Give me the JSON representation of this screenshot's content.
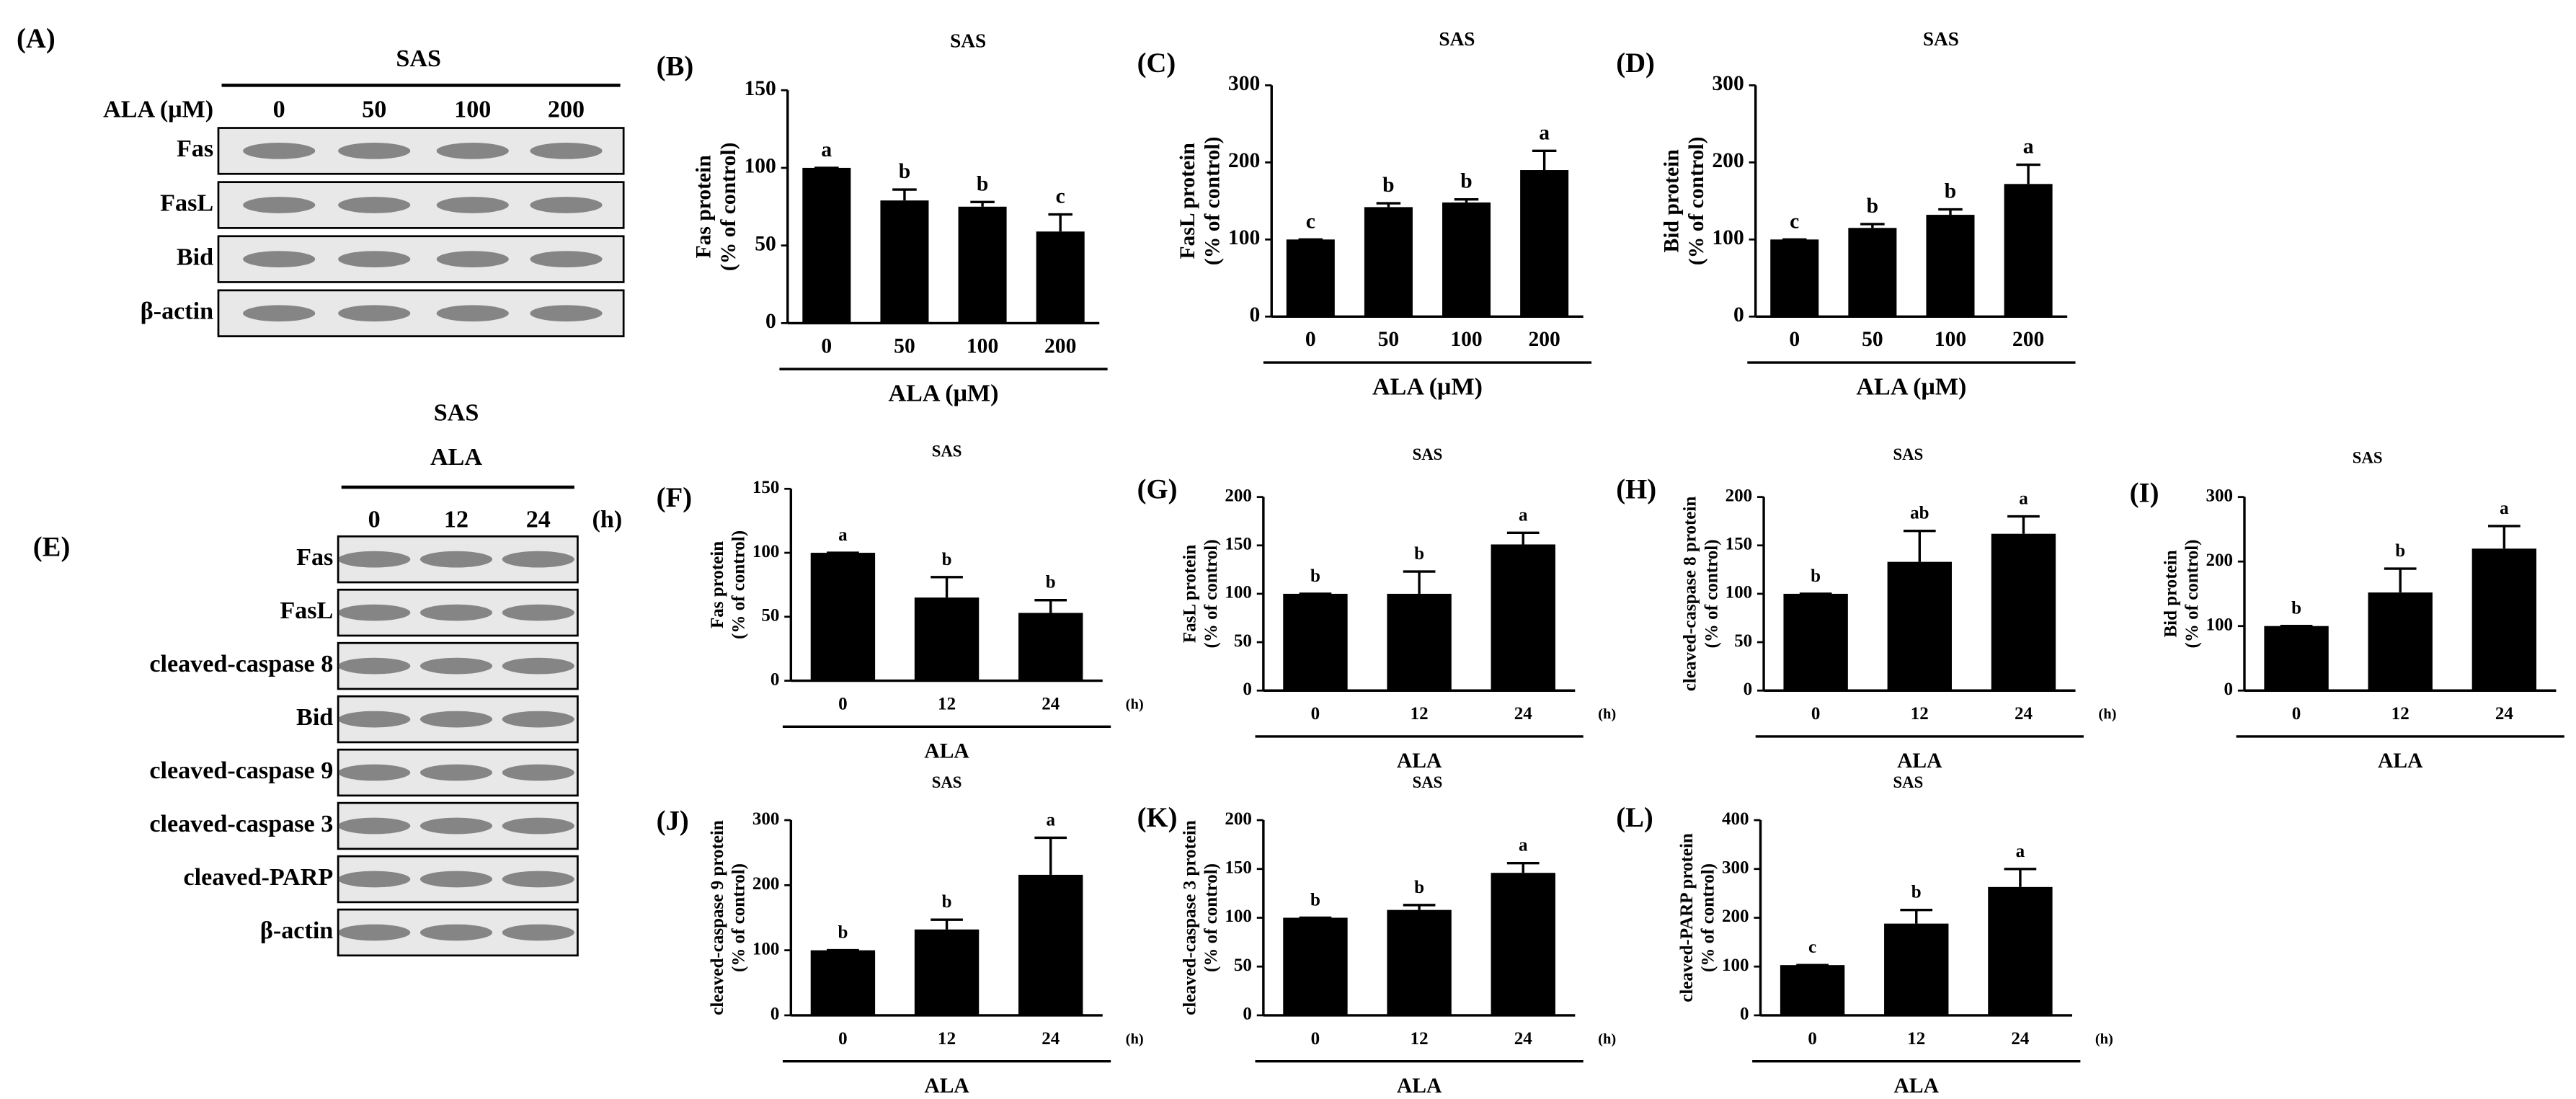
{
  "blots": [
    {
      "label": "(A)",
      "header": "SAS",
      "condition": "ALA (μM)",
      "lanes": [
        "0",
        "50",
        "100",
        "200"
      ],
      "rows": [
        "Fas",
        "FasL",
        "Bid",
        "β-actin"
      ]
    },
    {
      "label": "(E)",
      "header": "SAS",
      "condition": "ALA",
      "lanes": [
        "0",
        "12",
        "24"
      ],
      "unit": "(h)",
      "rows": [
        "Fas",
        "FasL",
        "cleaved-caspase 8",
        "Bid",
        "cleaved-caspase 9",
        "cleaved-caspase 3",
        "cleaved-PARP",
        "β-actin"
      ]
    }
  ],
  "chart_data": [
    {
      "type": "bar",
      "panel": "(B)",
      "title": "SAS",
      "ylabel": [
        "Fas protein",
        "(% of control)"
      ],
      "xlabel": "ALA (μM)",
      "categories": [
        "0",
        "50",
        "100",
        "200"
      ],
      "values": [
        100,
        79,
        75,
        59
      ],
      "errors": [
        0,
        7,
        3,
        11
      ],
      "letters": [
        "a",
        "b",
        "b",
        "c"
      ],
      "color": "#000000",
      "ylim": [
        0,
        150
      ],
      "yticks": [
        0,
        50,
        100,
        150
      ]
    },
    {
      "type": "bar",
      "panel": "(C)",
      "title": "SAS",
      "ylabel": [
        "FasL protein",
        "(% of control)"
      ],
      "xlabel": "ALA (μM)",
      "categories": [
        "0",
        "50",
        "100",
        "200"
      ],
      "values": [
        100,
        142,
        148,
        190
      ],
      "errors": [
        0,
        5,
        4,
        25
      ],
      "letters": [
        "c",
        "b",
        "b",
        "a"
      ],
      "color": "#000000",
      "ylim": [
        0,
        300
      ],
      "yticks": [
        0,
        100,
        200,
        300
      ]
    },
    {
      "type": "bar",
      "panel": "(D)",
      "title": "SAS",
      "ylabel": [
        "Bid protein",
        "(% of control)"
      ],
      "xlabel": "ALA (μM)",
      "categories": [
        "0",
        "50",
        "100",
        "200"
      ],
      "values": [
        100,
        115,
        132,
        172
      ],
      "errors": [
        0,
        5,
        7,
        25
      ],
      "letters": [
        "c",
        "b",
        "b",
        "a"
      ],
      "color": "#000000",
      "ylim": [
        0,
        300
      ],
      "yticks": [
        0,
        100,
        200,
        300
      ]
    },
    {
      "type": "bar",
      "panel": "(F)",
      "title": "SAS",
      "ylabel": [
        "Fas protein",
        "(% of control)"
      ],
      "xlabel": "ALA",
      "x_unit": "(h)",
      "categories": [
        "0",
        "12",
        "24"
      ],
      "values": [
        100,
        65,
        53
      ],
      "errors": [
        0,
        16,
        10
      ],
      "letters": [
        "a",
        "b",
        "b"
      ],
      "color": "#000000",
      "ylim": [
        0,
        150
      ],
      "yticks": [
        0,
        50,
        100,
        150
      ]
    },
    {
      "type": "bar",
      "panel": "(G)",
      "title": "SAS",
      "ylabel": [
        "FasL protein",
        "(% of control)"
      ],
      "xlabel": "ALA",
      "x_unit": "(h)",
      "categories": [
        "0",
        "12",
        "24"
      ],
      "values": [
        100,
        100,
        151
      ],
      "errors": [
        0,
        23,
        12
      ],
      "letters": [
        "b",
        "b",
        "a"
      ],
      "color": "#000000",
      "ylim": [
        0,
        200
      ],
      "yticks": [
        0,
        50,
        100,
        150,
        200
      ]
    },
    {
      "type": "bar",
      "panel": "(H)",
      "title": "SAS",
      "ylabel": [
        "cleaved-caspase 8 protein",
        "(% of control)"
      ],
      "xlabel": "ALA",
      "x_unit": "(h)",
      "categories": [
        "0",
        "12",
        "24"
      ],
      "values": [
        100,
        133,
        162
      ],
      "errors": [
        0,
        32,
        18
      ],
      "letters": [
        "b",
        "ab",
        "a"
      ],
      "color": "#000000",
      "ylim": [
        0,
        200
      ],
      "yticks": [
        0,
        50,
        100,
        150,
        200
      ]
    },
    {
      "type": "bar",
      "panel": "(I)",
      "title": "SAS",
      "ylabel": [
        "Bid protein",
        "(% of control)"
      ],
      "xlabel": "ALA",
      "x_unit": "(h)",
      "categories": [
        "0",
        "12",
        "24"
      ],
      "values": [
        100,
        152,
        220
      ],
      "errors": [
        0,
        37,
        35
      ],
      "letters": [
        "b",
        "b",
        "a"
      ],
      "color": "#000000",
      "ylim": [
        0,
        300
      ],
      "yticks": [
        0,
        100,
        200,
        300
      ]
    },
    {
      "type": "bar",
      "panel": "(J)",
      "title": "SAS",
      "ylabel": [
        "cleaved-caspase 9 protein",
        "(% of control)"
      ],
      "xlabel": "ALA",
      "x_unit": "(h)",
      "categories": [
        "0",
        "12",
        "24"
      ],
      "values": [
        100,
        132,
        216
      ],
      "errors": [
        0,
        15,
        57
      ],
      "letters": [
        "b",
        "b",
        "a"
      ],
      "color": "#000000",
      "ylim": [
        0,
        300
      ],
      "yticks": [
        0,
        100,
        200,
        300
      ]
    },
    {
      "type": "bar",
      "panel": "(K)",
      "title": "SAS",
      "ylabel": [
        "cleaved-caspase 3 protein",
        "(% of control)"
      ],
      "xlabel": "ALA",
      "x_unit": "(h)",
      "categories": [
        "0",
        "12",
        "24"
      ],
      "values": [
        100,
        108,
        146
      ],
      "errors": [
        0,
        5,
        10
      ],
      "letters": [
        "b",
        "b",
        "a"
      ],
      "color": "#000000",
      "ylim": [
        0,
        200
      ],
      "yticks": [
        0,
        50,
        100,
        150,
        200
      ]
    },
    {
      "type": "bar",
      "panel": "(L)",
      "title": "SAS",
      "ylabel": [
        "cleaved-PARP protein",
        "(% of control)"
      ],
      "xlabel": "ALA",
      "x_unit": "(h)",
      "categories": [
        "0",
        "12",
        "24"
      ],
      "values": [
        103,
        188,
        263
      ],
      "errors": [
        0,
        28,
        37
      ],
      "letters": [
        "c",
        "b",
        "a"
      ],
      "color": "#000000",
      "ylim": [
        0,
        400
      ],
      "yticks": [
        0,
        100,
        200,
        300,
        400
      ]
    }
  ]
}
